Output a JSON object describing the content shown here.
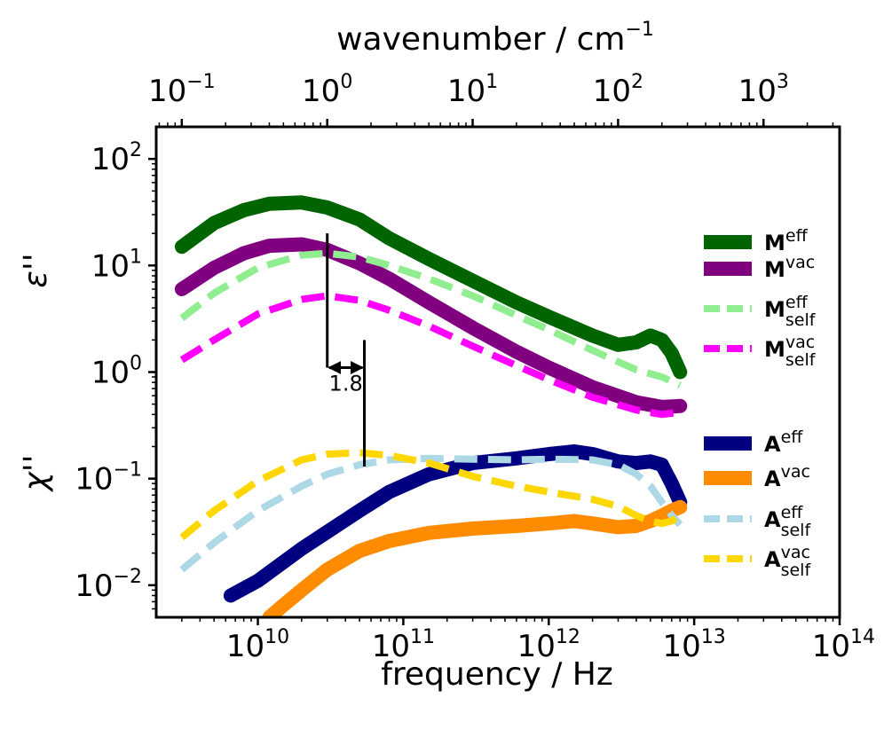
{
  "chart_data": {
    "type": "line",
    "xscale": "log",
    "yscale": "log",
    "xlabel": "frequency / Hz",
    "x2label": "wavenumber / cm",
    "x2label_exponent": "−1",
    "ylabel_top": "ε''",
    "ylabel_bottom": "χ''",
    "xlim": [
      2000000000.0,
      100000000000000.0
    ],
    "ylim": [
      0.005,
      200
    ],
    "x2lim": [
      0.0667,
      3336
    ],
    "x_ticks": [
      {
        "value": 10000000000.0,
        "base": "10",
        "exp": "10"
      },
      {
        "value": 100000000000.0,
        "base": "10",
        "exp": "11"
      },
      {
        "value": 1000000000000.0,
        "base": "10",
        "exp": "12"
      },
      {
        "value": 10000000000000.0,
        "base": "10",
        "exp": "13"
      },
      {
        "value": 100000000000000.0,
        "base": "10",
        "exp": "14"
      }
    ],
    "x2_ticks": [
      {
        "value": 0.1,
        "base": "10",
        "exp": "−1"
      },
      {
        "value": 1,
        "base": "10",
        "exp": "0"
      },
      {
        "value": 10,
        "base": "10",
        "exp": "1"
      },
      {
        "value": 100,
        "base": "10",
        "exp": "2"
      },
      {
        "value": 1000,
        "base": "10",
        "exp": "3"
      }
    ],
    "y_ticks": [
      {
        "value": 100,
        "base": "10",
        "exp": "2"
      },
      {
        "value": 10,
        "base": "10",
        "exp": "1"
      },
      {
        "value": 1,
        "base": "10",
        "exp": "0"
      },
      {
        "value": 0.1,
        "base": "10",
        "exp": "−1"
      },
      {
        "value": 0.01,
        "base": "10",
        "exp": "−2"
      }
    ],
    "series": [
      {
        "name": "M_eff",
        "main": "M",
        "sup": "eff",
        "sub": "",
        "color": "#006400",
        "style": "solid",
        "width": 16,
        "x": [
          3000000000.0,
          5000000000.0,
          8000000000.0,
          12000000000.0,
          20000000000.0,
          30000000000.0,
          50000000000.0,
          80000000000.0,
          150000000000.0,
          300000000000.0,
          600000000000.0,
          1000000000000.0,
          2000000000000.0,
          3000000000000.0,
          4000000000000.0,
          5000000000000.0,
          6000000000000.0,
          7000000000000.0,
          8000000000000.0
        ],
        "y": [
          15,
          25,
          33,
          38,
          39,
          35,
          27,
          18,
          11.5,
          7.2,
          4.5,
          3.3,
          2.2,
          1.8,
          1.9,
          2.2,
          2.0,
          1.5,
          1.0
        ]
      },
      {
        "name": "M_vac",
        "main": "M",
        "sup": "vac",
        "sub": "",
        "color": "#800080",
        "style": "solid",
        "width": 16,
        "x": [
          3000000000.0,
          5000000000.0,
          8000000000.0,
          12000000000.0,
          20000000000.0,
          30000000000.0,
          50000000000.0,
          80000000000.0,
          150000000000.0,
          300000000000.0,
          600000000000.0,
          1000000000000.0,
          2000000000000.0,
          4000000000000.0,
          6000000000000.0,
          8000000000000.0
        ],
        "y": [
          6,
          9.5,
          13,
          15.3,
          15.8,
          14,
          10.5,
          7.5,
          4.5,
          2.6,
          1.55,
          1.1,
          0.72,
          0.52,
          0.47,
          0.48
        ]
      },
      {
        "name": "M_eff_self",
        "main": "M",
        "sup": "eff",
        "sub": "self",
        "color": "#90EE90",
        "style": "dashed",
        "width": 8,
        "x": [
          3000000000.0,
          5000000000.0,
          10000000000.0,
          20000000000.0,
          30000000000.0,
          50000000000.0,
          80000000000.0,
          150000000000.0,
          300000000000.0,
          600000000000.0,
          1000000000000.0,
          2000000000000.0,
          4000000000000.0,
          6000000000000.0,
          8000000000000.0
        ],
        "y": [
          3.2,
          5.5,
          9.5,
          12.5,
          13,
          12,
          10,
          7.5,
          5.2,
          3.4,
          2.5,
          1.6,
          1.05,
          0.9,
          0.75
        ]
      },
      {
        "name": "M_vac_self",
        "main": "M",
        "sup": "vac",
        "sub": "self",
        "color": "#FF00FF",
        "style": "dashed",
        "width": 8,
        "x": [
          3000000000.0,
          5000000000.0,
          10000000000.0,
          20000000000.0,
          30000000000.0,
          50000000000.0,
          80000000000.0,
          150000000000.0,
          300000000000.0,
          600000000000.0,
          1000000000000.0,
          2000000000000.0,
          4000000000000.0,
          6000000000000.0,
          8000000000000.0
        ],
        "y": [
          1.3,
          2.0,
          3.5,
          4.8,
          5.2,
          4.7,
          3.8,
          2.7,
          1.75,
          1.15,
          0.85,
          0.58,
          0.44,
          0.4,
          0.42
        ]
      },
      {
        "name": "A_eff",
        "main": "A",
        "sup": "eff",
        "sub": "",
        "color": "#000080",
        "style": "solid",
        "width": 16,
        "x": [
          6500000000.0,
          10000000000.0,
          20000000000.0,
          50000000000.0,
          80000000000.0,
          150000000000.0,
          300000000000.0,
          600000000000.0,
          1000000000000.0,
          1500000000000.0,
          2000000000000.0,
          3000000000000.0,
          4000000000000.0,
          5000000000000.0,
          6000000000000.0,
          7000000000000.0,
          8000000000000.0
        ],
        "y": [
          0.008,
          0.011,
          0.022,
          0.05,
          0.075,
          0.11,
          0.14,
          0.155,
          0.17,
          0.18,
          0.17,
          0.145,
          0.14,
          0.145,
          0.135,
          0.09,
          0.06
        ]
      },
      {
        "name": "A_vac",
        "main": "A",
        "sup": "vac",
        "sub": "",
        "color": "#FF8C00",
        "style": "solid",
        "width": 16,
        "x": [
          12000000000.0,
          15000000000.0,
          20000000000.0,
          30000000000.0,
          50000000000.0,
          80000000000.0,
          150000000000.0,
          300000000000.0,
          600000000000.0,
          1000000000000.0,
          1500000000000.0,
          2000000000000.0,
          3000000000000.0,
          4000000000000.0,
          5000000000000.0,
          6000000000000.0,
          7000000000000.0,
          8000000000000.0
        ],
        "y": [
          0.005,
          0.0065,
          0.009,
          0.014,
          0.021,
          0.026,
          0.031,
          0.034,
          0.036,
          0.038,
          0.04,
          0.038,
          0.035,
          0.036,
          0.04,
          0.045,
          0.05,
          0.054
        ]
      },
      {
        "name": "A_eff_self",
        "main": "A",
        "sup": "eff",
        "sub": "self",
        "color": "#ADD8E6",
        "style": "dashed",
        "width": 8,
        "x": [
          3000000000.0,
          5000000000.0,
          10000000000.0,
          20000000000.0,
          30000000000.0,
          50000000000.0,
          80000000000.0,
          150000000000.0,
          300000000000.0,
          600000000000.0,
          1000000000000.0,
          2000000000000.0,
          3000000000000.0,
          4000000000000.0,
          5000000000000.0,
          6000000000000.0,
          7000000000000.0,
          8000000000000.0
        ],
        "y": [
          0.014,
          0.025,
          0.05,
          0.085,
          0.11,
          0.135,
          0.15,
          0.155,
          0.152,
          0.15,
          0.152,
          0.15,
          0.135,
          0.11,
          0.085,
          0.06,
          0.045,
          0.037
        ]
      },
      {
        "name": "A_vac_self",
        "main": "A",
        "sup": "vac",
        "sub": "self",
        "color": "#FFD700",
        "style": "dashed",
        "width": 8,
        "x": [
          3000000000.0,
          5000000000.0,
          10000000000.0,
          20000000000.0,
          30000000000.0,
          50000000000.0,
          80000000000.0,
          150000000000.0,
          300000000000.0,
          600000000000.0,
          1000000000000.0,
          2000000000000.0,
          3000000000000.0,
          4000000000000.0,
          5000000000000.0,
          6000000000000.0,
          7000000000000.0,
          8000000000000.0
        ],
        "y": [
          0.028,
          0.05,
          0.095,
          0.15,
          0.17,
          0.175,
          0.165,
          0.14,
          0.105,
          0.085,
          0.075,
          0.064,
          0.055,
          0.045,
          0.04,
          0.038,
          0.04,
          0.045
        ]
      }
    ],
    "annotation": {
      "text": "1.8",
      "line1": {
        "x": 30000000000.0,
        "y_from": 1.1,
        "y_to": 20
      },
      "line2": {
        "x": 54000000000.0,
        "y_from": 0.13,
        "y_to": 2.0
      },
      "arrow_y": 1.1
    },
    "legend_position": "right"
  }
}
